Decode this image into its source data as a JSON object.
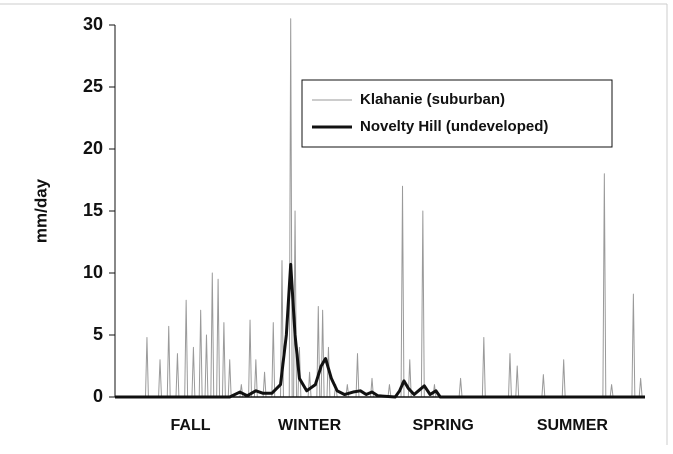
{
  "chart_data": {
    "type": "line",
    "ylabel": "mm/day",
    "xlim": [
      0,
      365
    ],
    "xticks": [
      {
        "value": 52,
        "label": "FALL"
      },
      {
        "value": 134,
        "label": "WINTER"
      },
      {
        "value": 226,
        "label": "SPRING"
      },
      {
        "value": 315,
        "label": "SUMMER"
      }
    ],
    "ylim": [
      0,
      30
    ],
    "yticks": [
      0,
      5,
      10,
      15,
      20,
      25,
      30
    ],
    "legend": "upper right",
    "series": [
      {
        "name": "Klahanie (suburban)",
        "color": "#9a9a9a",
        "width": 1,
        "x": [
          0,
          21,
          22,
          23,
          30,
          31,
          32,
          36,
          37,
          38,
          42,
          43,
          44,
          48,
          49,
          50,
          53,
          54,
          55,
          58,
          59,
          60,
          62,
          63,
          64,
          66,
          67,
          68,
          70,
          71,
          72,
          74,
          75,
          76,
          78,
          79,
          80,
          86,
          87,
          88,
          92,
          93,
          94,
          96,
          97,
          98,
          102,
          103,
          104,
          108,
          109,
          110,
          114,
          115,
          116,
          120,
          121,
          122,
          123,
          124,
          125,
          126,
          127,
          128,
          133,
          134,
          135,
          139,
          140,
          141,
          142,
          143,
          144,
          146,
          147,
          148,
          151,
          152,
          153,
          159,
          160,
          161,
          166,
          167,
          168,
          176,
          177,
          178,
          188,
          189,
          190,
          197,
          198,
          199,
          202,
          203,
          204,
          211,
          212,
          213,
          219,
          220,
          221,
          237,
          238,
          239,
          253,
          254,
          255,
          271,
          272,
          273,
          276,
          277,
          278,
          294,
          295,
          296,
          308,
          309,
          310,
          336,
          337,
          338,
          341,
          342,
          343,
          356,
          357,
          358,
          361,
          362,
          363,
          365
        ],
        "values": [
          0,
          0,
          4.8,
          0,
          0,
          3,
          0,
          0,
          5.7,
          0,
          0,
          3.5,
          0,
          0,
          7.8,
          0,
          0,
          4,
          0,
          0,
          7,
          0,
          0,
          5,
          0,
          0,
          10,
          0,
          0,
          9.5,
          0,
          0,
          6,
          0,
          0,
          3,
          0,
          0,
          1,
          0,
          0,
          6.2,
          0,
          0,
          3,
          0,
          0,
          2,
          0,
          0,
          6,
          0,
          0,
          11,
          0,
          0,
          30.5,
          0,
          0,
          15,
          0,
          0,
          4,
          0,
          0,
          2,
          0,
          0,
          7.3,
          0,
          0,
          7,
          0,
          0,
          4,
          0,
          0,
          1,
          0,
          0,
          1,
          0,
          0,
          3.5,
          0,
          0,
          1.5,
          0,
          0,
          1,
          0,
          0,
          17,
          0,
          0,
          3,
          0,
          0,
          15,
          0,
          0,
          1,
          0,
          0,
          1.5,
          0,
          0,
          4.8,
          0,
          0,
          3.5,
          0,
          0,
          2.5,
          0,
          0,
          1.8,
          0,
          0,
          3,
          0,
          0,
          18,
          0,
          0,
          1,
          0,
          0,
          8.3,
          0,
          0,
          1.5,
          0,
          0
        ]
      },
      {
        "name": "Novelty Hill (undeveloped)",
        "color": "#111111",
        "width": 3,
        "x": [
          0,
          79,
          86,
          91,
          97,
          102,
          108,
          114,
          118,
          121,
          124,
          127,
          132,
          138,
          142,
          145,
          149,
          153,
          158,
          164,
          169,
          173,
          177,
          181,
          193,
          196,
          199,
          202,
          206,
          210,
          213,
          217,
          221,
          224,
          365
        ],
        "values": [
          0,
          0,
          0.4,
          0.1,
          0.5,
          0.3,
          0.3,
          1,
          5,
          10.7,
          5,
          1.5,
          0.5,
          1,
          2.5,
          3.1,
          1.5,
          0.5,
          0.2,
          0.4,
          0.5,
          0.2,
          0.4,
          0.1,
          0,
          0.5,
          1.3,
          0.7,
          0.2,
          0.6,
          0.9,
          0.2,
          0.5,
          0,
          0
        ]
      }
    ]
  }
}
